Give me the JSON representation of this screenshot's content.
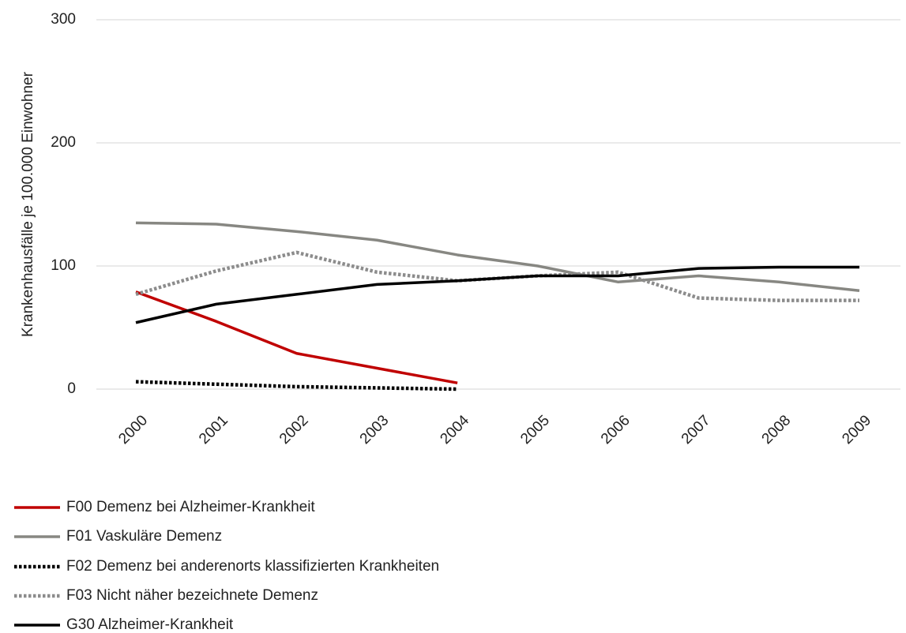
{
  "chart_data": {
    "type": "line",
    "y_label": "Krankenhausfälle je 100.000 Einwohner",
    "categories": [
      "2000",
      "2001",
      "2002",
      "2003",
      "2004",
      "2005",
      "2006",
      "2007",
      "2008",
      "2009"
    ],
    "series": [
      {
        "name": "F00 Demenz bei Alzheimer-Krankheit",
        "color": "#c00000",
        "dash": "solid",
        "values": [
          79,
          55,
          29,
          17,
          5,
          null,
          null,
          null,
          null,
          null
        ]
      },
      {
        "name": "F01 Vaskuläre Demenz",
        "color": "#878782",
        "dash": "solid",
        "values": [
          135,
          134,
          128,
          121,
          109,
          100,
          87,
          92,
          87,
          80
        ]
      },
      {
        "name": "F02 Demenz bei anderenorts klassifizierten Krankheiten",
        "color": "#000000",
        "dash": "dotted",
        "values": [
          6,
          4,
          2,
          1,
          0,
          null,
          null,
          null,
          null,
          null
        ]
      },
      {
        "name": "F03 Nicht näher bezeichnete Demenz",
        "color": "#8c8c8c",
        "dash": "dotted",
        "values": [
          77,
          96,
          111,
          95,
          88,
          92,
          95,
          74,
          72,
          72
        ]
      },
      {
        "name": "G30 Alzheimer-Krankheit",
        "color": "#000000",
        "dash": "solid",
        "values": [
          54,
          69,
          77,
          85,
          88,
          92,
          92,
          98,
          99,
          99
        ]
      }
    ],
    "ylim": [
      0,
      300
    ],
    "yticks": [
      0,
      100,
      200,
      300
    ],
    "grid": true
  }
}
